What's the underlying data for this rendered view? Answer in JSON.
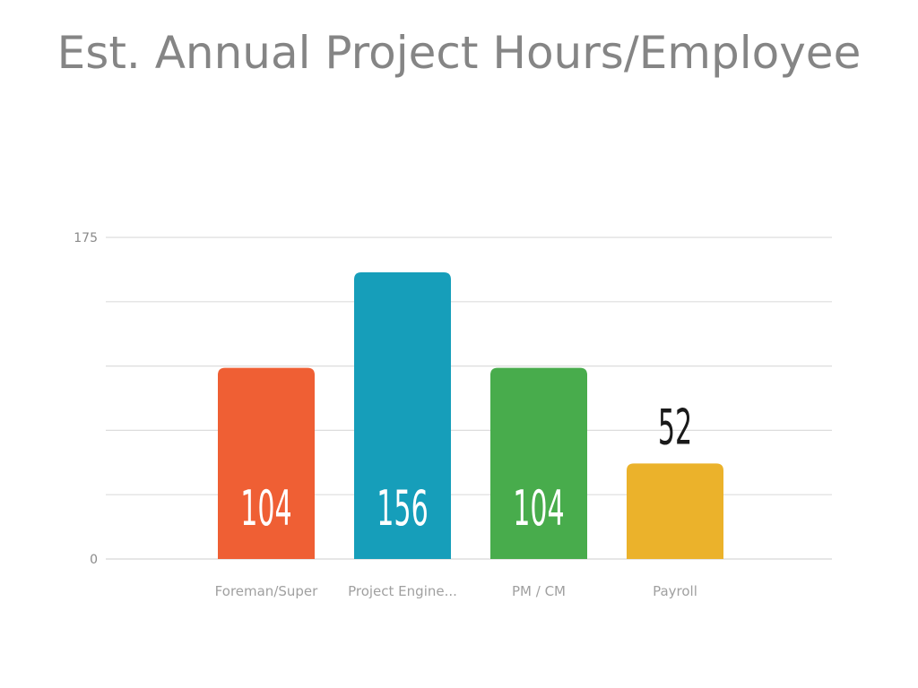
{
  "chart_data": {
    "type": "bar",
    "title": "Est. Annual Project Hours/Employee",
    "categories": [
      "Foreman/Super",
      "Project Engine...",
      "PM / CM",
      "Payroll"
    ],
    "values": [
      104,
      156,
      104,
      52
    ],
    "colors": [
      "#ef5f34",
      "#169eba",
      "#48ac4c",
      "#ebb22b"
    ],
    "ylim": [
      0,
      175
    ],
    "yticks": [
      "0",
      "175"
    ],
    "gridlines": 5,
    "grid": true,
    "data_label_inside_color": "#ffffff",
    "data_label_outside_color": "#1a1a1a"
  }
}
